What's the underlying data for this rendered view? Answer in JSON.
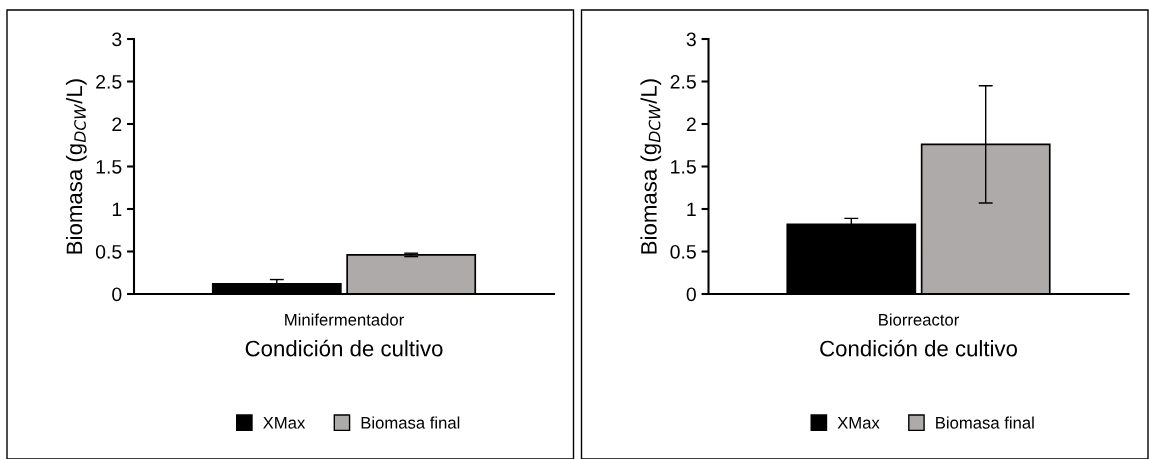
{
  "chart_data": [
    {
      "type": "bar",
      "categories": [
        "Minifermentador"
      ],
      "xlabel": "Condición de cultivo",
      "ylabel": "Biomasa (g$_{DCW}$/L)",
      "ylim": [
        0,
        3
      ],
      "yticks": [
        0,
        0.5,
        1,
        1.5,
        2,
        2.5,
        3
      ],
      "legend": "bottom",
      "grid": false,
      "series": [
        {
          "name": "XMax",
          "color": "#000000",
          "values": [
            0.12
          ],
          "errors": [
            0.05
          ]
        },
        {
          "name": "Biomasa final",
          "color": "#aeaaaa",
          "values": [
            0.46
          ],
          "errors": [
            0.02
          ]
        }
      ]
    },
    {
      "type": "bar",
      "categories": [
        "Biorreactor"
      ],
      "xlabel": "Condición de cultivo",
      "ylabel": "Biomasa (g$_{DCW}$/L)",
      "ylim": [
        0,
        3
      ],
      "yticks": [
        0,
        0.5,
        1,
        1.5,
        2,
        2.5,
        3
      ],
      "legend": "bottom",
      "grid": false,
      "series": [
        {
          "name": "XMax",
          "color": "#000000",
          "values": [
            0.82
          ],
          "errors": [
            0.07
          ]
        },
        {
          "name": "Biomasa final",
          "color": "#aeaaaa",
          "values": [
            1.76
          ],
          "errors": [
            0.69
          ]
        }
      ]
    }
  ]
}
